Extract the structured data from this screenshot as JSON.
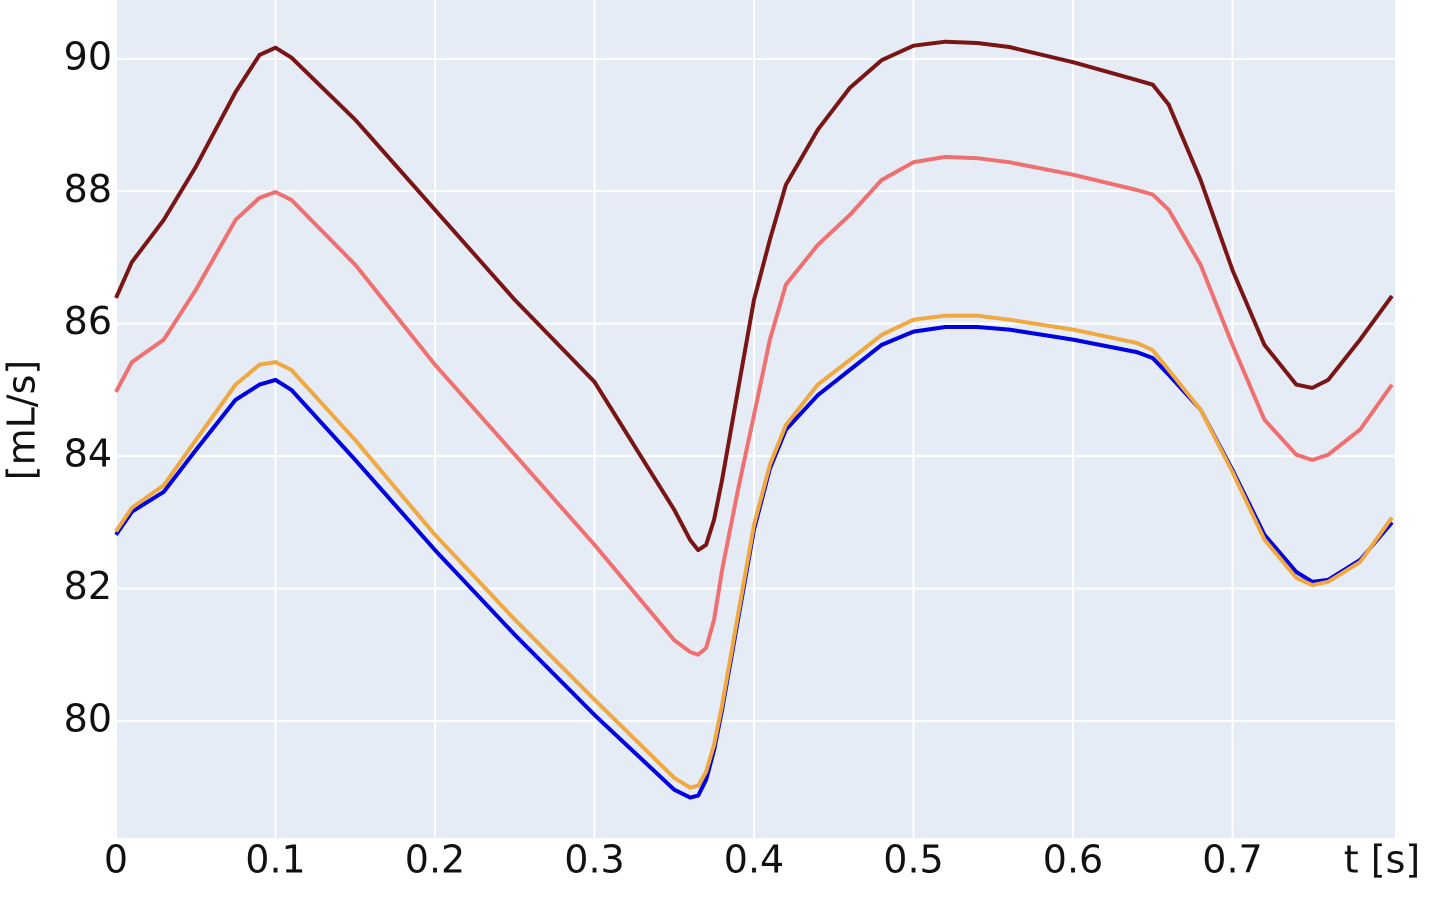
{
  "chart_data": {
    "type": "line",
    "x_label": "t [s]",
    "y_label": "[mL/s]",
    "x": [
      0,
      0.01,
      0.03,
      0.05,
      0.075,
      0.09,
      0.1,
      0.11,
      0.15,
      0.2,
      0.25,
      0.3,
      0.35,
      0.36,
      0.365,
      0.37,
      0.375,
      0.38,
      0.39,
      0.4,
      0.41,
      0.42,
      0.44,
      0.46,
      0.48,
      0.5,
      0.52,
      0.54,
      0.56,
      0.6,
      0.64,
      0.65,
      0.66,
      0.68,
      0.7,
      0.72,
      0.74,
      0.75,
      0.76,
      0.78,
      0.8
    ],
    "series": [
      {
        "color": "#7a1515",
        "values": [
          86.39,
          86.93,
          87.57,
          88.37,
          89.5,
          90.06,
          90.17,
          90.02,
          89.08,
          87.72,
          86.36,
          85.12,
          83.19,
          82.73,
          82.58,
          82.66,
          83.04,
          83.64,
          85.0,
          86.36,
          87.27,
          88.1,
          88.93,
          89.56,
          89.98,
          90.2,
          90.26,
          90.24,
          90.18,
          89.95,
          89.68,
          89.61,
          89.31,
          88.17,
          86.81,
          85.68,
          85.08,
          85.03,
          85.15,
          85.76,
          86.42
        ]
      },
      {
        "color": "#ef7070",
        "values": [
          84.97,
          85.42,
          85.76,
          86.51,
          87.57,
          87.9,
          87.99,
          87.87,
          86.89,
          85.38,
          84.02,
          82.66,
          81.22,
          81.04,
          81.0,
          81.1,
          81.53,
          82.28,
          83.49,
          84.62,
          85.76,
          86.59,
          87.19,
          87.64,
          88.17,
          88.44,
          88.52,
          88.5,
          88.44,
          88.25,
          88.02,
          87.95,
          87.72,
          86.89,
          85.68,
          84.55,
          84.02,
          83.94,
          84.02,
          84.4,
          85.08
        ]
      },
      {
        "color": "#0000e0",
        "values": [
          82.81,
          83.16,
          83.46,
          84.09,
          84.85,
          85.08,
          85.15,
          85.0,
          83.94,
          82.58,
          81.3,
          80.09,
          78.96,
          78.84,
          78.87,
          79.11,
          79.56,
          80.17,
          81.53,
          82.89,
          83.81,
          84.4,
          84.92,
          85.3,
          85.68,
          85.88,
          85.95,
          85.95,
          85.91,
          85.76,
          85.57,
          85.48,
          85.23,
          84.7,
          83.79,
          82.81,
          82.25,
          82.1,
          82.13,
          82.43,
          83.0
        ]
      },
      {
        "color": "#f0a840",
        "values": [
          82.86,
          83.22,
          83.56,
          84.24,
          85.08,
          85.38,
          85.42,
          85.3,
          84.24,
          82.81,
          81.53,
          80.32,
          79.14,
          78.99,
          79.02,
          79.23,
          79.64,
          80.24,
          81.6,
          82.96,
          83.87,
          84.47,
          85.08,
          85.45,
          85.83,
          86.06,
          86.12,
          86.12,
          86.06,
          85.91,
          85.71,
          85.6,
          85.3,
          84.7,
          83.76,
          82.74,
          82.16,
          82.05,
          82.1,
          82.4,
          83.07
        ]
      }
    ],
    "xlim": [
      0,
      0.8
    ],
    "ylim": [
      78.23,
      90.89
    ],
    "xticks": [
      0,
      0.1,
      0.2,
      0.3,
      0.4,
      0.5,
      0.6,
      0.7
    ],
    "yticks": [
      80,
      82,
      84,
      86,
      88,
      90
    ],
    "grid": true,
    "background": "#e5ecf6"
  }
}
